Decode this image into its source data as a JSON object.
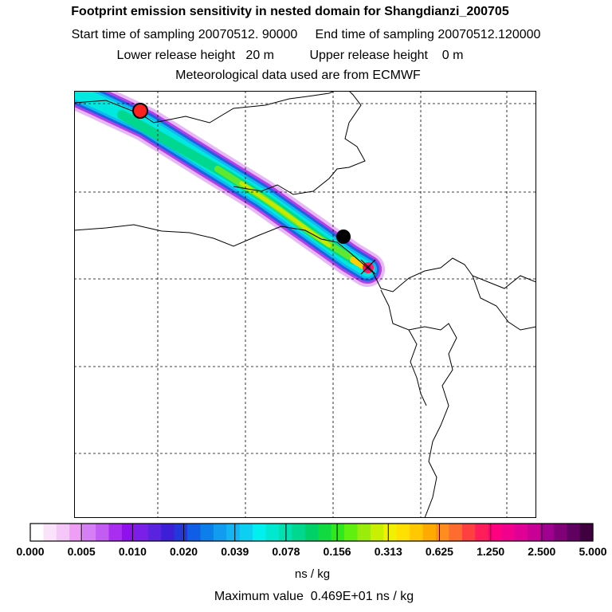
{
  "header": {
    "title": "Footprint emission sensitivity in nested domain for Shangdianzi_200705",
    "sampling_line": "Start time of sampling 20070512. 90000     End time of sampling 20070512.120000",
    "release_line": "Lower release height   20 m          Upper release height    0 m",
    "met_line": "Meteorological data used are from ECMWF"
  },
  "colorbar": {
    "tick_labels": [
      "0.000",
      "0.005",
      "0.010",
      "0.020",
      "0.039",
      "0.078",
      "0.156",
      "0.313",
      "0.625",
      "1.250",
      "2.500",
      "5.000"
    ],
    "colors": [
      "#ffffff",
      "#fbe2fb",
      "#f5c6f8",
      "#ef9ef6",
      "#d67ef5",
      "#c25cf2",
      "#a92ef0",
      "#8f12ee",
      "#7a1fe8",
      "#5a23e0",
      "#3d1fd8",
      "#2238d8",
      "#0f5ee5",
      "#0c7fea",
      "#129cf0",
      "#13b6f3",
      "#0ccff2",
      "#00f0f0",
      "#00e8d0",
      "#00e0b0",
      "#00d890",
      "#00d068",
      "#10da40",
      "#30e820",
      "#60f010",
      "#9aec0a",
      "#c8f000",
      "#f0f000",
      "#ffe000",
      "#ffc800",
      "#ffaa00",
      "#ff8c20",
      "#ff6c30",
      "#ff4040",
      "#ff1e5a",
      "#ff0080",
      "#f0008c",
      "#e00096",
      "#c80096",
      "#a00090",
      "#800078",
      "#600060",
      "#400040"
    ],
    "unit": "ns / kg",
    "maximum": "Maximum value  0.469E+01 ns / kg"
  },
  "map": {
    "markers": [
      {
        "name": "release-site-marker",
        "color": "#ff2020"
      },
      {
        "name": "trajectory-point-marker",
        "color": "#000000"
      }
    ],
    "receptor_color": "#e00060"
  }
}
